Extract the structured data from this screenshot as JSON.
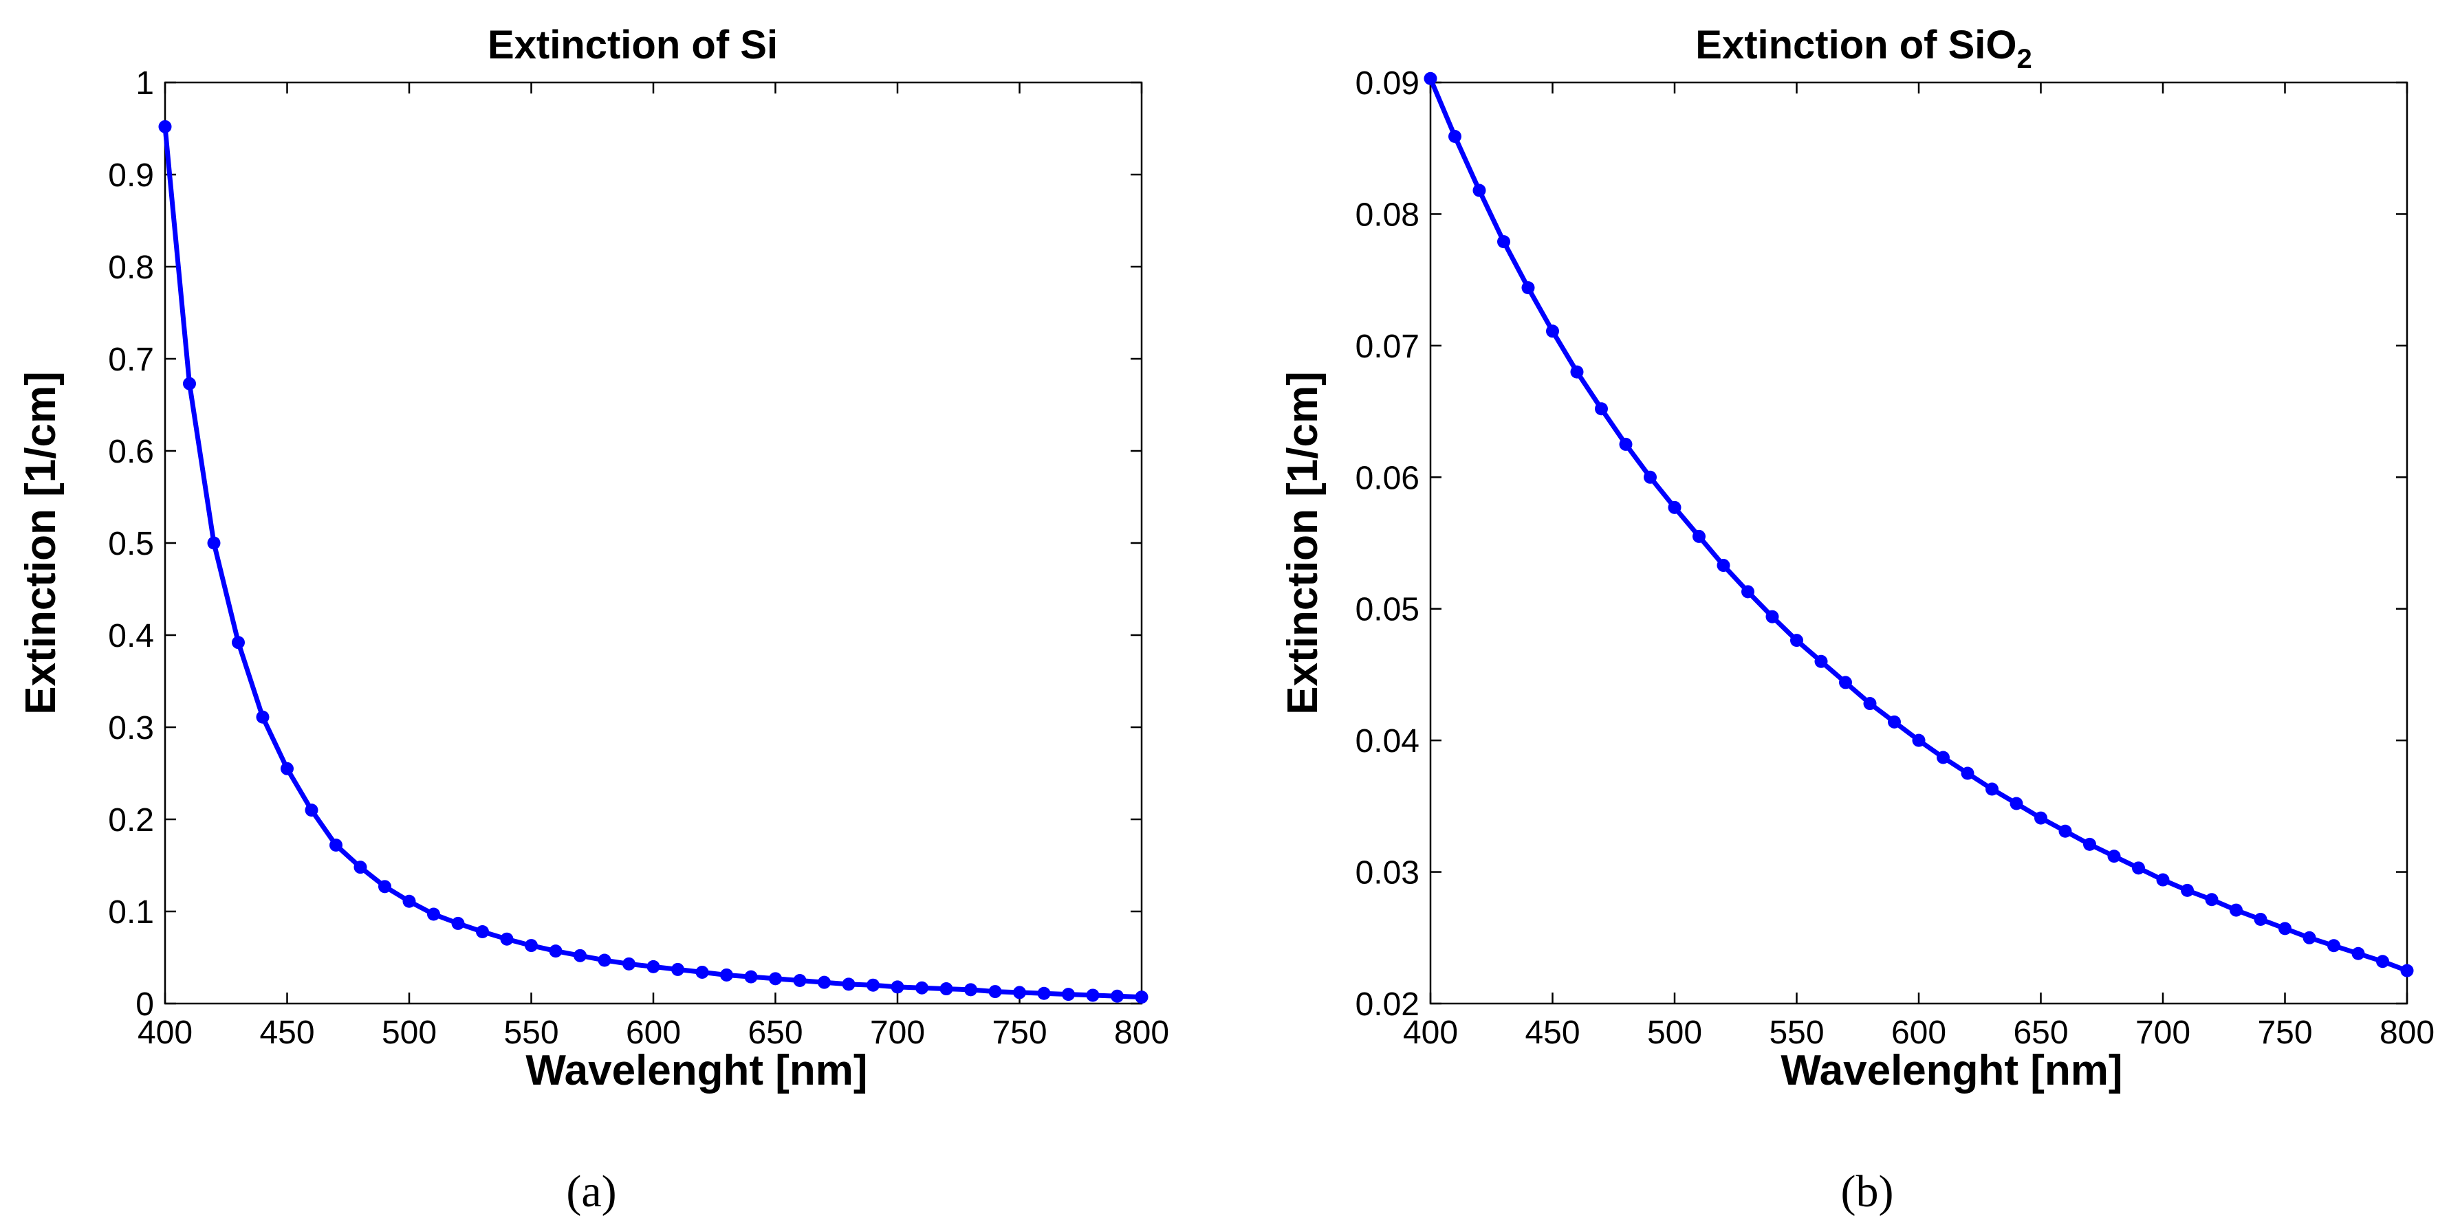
{
  "chart_data": [
    {
      "type": "line",
      "title": "Extinction of Si",
      "title_main": "Extinction of Si",
      "title_subscript": "",
      "xlabel": "Wavelenght [nm]",
      "ylabel": "Extinction [1/cm]",
      "caption": "(a)",
      "xlim": [
        400,
        800
      ],
      "ylim": [
        0,
        1
      ],
      "xticks": [
        400,
        450,
        500,
        550,
        600,
        650,
        700,
        750,
        800
      ],
      "yticks": [
        0,
        0.1,
        0.2,
        0.3,
        0.4,
        0.5,
        0.6,
        0.7,
        0.8,
        0.9,
        1
      ],
      "ytick_labels": [
        "0",
        "0.1",
        "0.2",
        "0.3",
        "0.4",
        "0.5",
        "0.6",
        "0.7",
        "0.8",
        "0.9",
        "1"
      ],
      "line_color": "#0000ff",
      "marker": "circle",
      "x": [
        400,
        410,
        420,
        430,
        440,
        450,
        460,
        470,
        480,
        490,
        500,
        510,
        520,
        530,
        540,
        550,
        560,
        570,
        580,
        590,
        600,
        610,
        620,
        630,
        640,
        650,
        660,
        670,
        680,
        690,
        700,
        710,
        720,
        730,
        740,
        750,
        760,
        770,
        780,
        790,
        800
      ],
      "y": [
        0.952,
        0.673,
        0.5,
        0.392,
        0.311,
        0.255,
        0.21,
        0.172,
        0.148,
        0.127,
        0.111,
        0.097,
        0.087,
        0.078,
        0.07,
        0.063,
        0.057,
        0.052,
        0.047,
        0.043,
        0.04,
        0.037,
        0.034,
        0.031,
        0.029,
        0.027,
        0.025,
        0.023,
        0.021,
        0.02,
        0.018,
        0.017,
        0.016,
        0.015,
        0.013,
        0.012,
        0.011,
        0.01,
        0.009,
        0.008,
        0.007
      ]
    },
    {
      "type": "line",
      "title": "Extinction of SiO2",
      "title_main": "Extinction of SiO",
      "title_subscript": "2",
      "xlabel": "Wavelenght [nm]",
      "ylabel": "Extinction [1/cm]",
      "caption": "(b)",
      "xlim": [
        400,
        800
      ],
      "ylim": [
        0.02,
        0.09
      ],
      "xticks": [
        400,
        450,
        500,
        550,
        600,
        650,
        700,
        750,
        800
      ],
      "yticks": [
        0.02,
        0.03,
        0.04,
        0.05,
        0.06,
        0.07,
        0.08,
        0.09
      ],
      "ytick_labels": [
        "0.02",
        "0.03",
        "0.04",
        "0.05",
        "0.06",
        "0.07",
        "0.08",
        "0.09"
      ],
      "line_color": "#0000ff",
      "marker": "circle",
      "x": [
        400,
        410,
        420,
        430,
        440,
        450,
        460,
        470,
        480,
        490,
        500,
        510,
        520,
        530,
        540,
        550,
        560,
        570,
        580,
        590,
        600,
        610,
        620,
        630,
        640,
        650,
        660,
        670,
        680,
        690,
        700,
        710,
        720,
        730,
        740,
        750,
        760,
        770,
        780,
        790,
        800
      ],
      "y": [
        0.0903,
        0.0859,
        0.0818,
        0.0779,
        0.0744,
        0.0711,
        0.068,
        0.0652,
        0.0625,
        0.06,
        0.0577,
        0.0555,
        0.0533,
        0.0513,
        0.0494,
        0.0476,
        0.046,
        0.0444,
        0.0428,
        0.0414,
        0.04,
        0.0387,
        0.0375,
        0.0363,
        0.0352,
        0.0341,
        0.0331,
        0.0321,
        0.0312,
        0.0303,
        0.0294,
        0.0286,
        0.0279,
        0.0271,
        0.0264,
        0.0257,
        0.025,
        0.0244,
        0.0238,
        0.0232,
        0.0225
      ]
    }
  ]
}
